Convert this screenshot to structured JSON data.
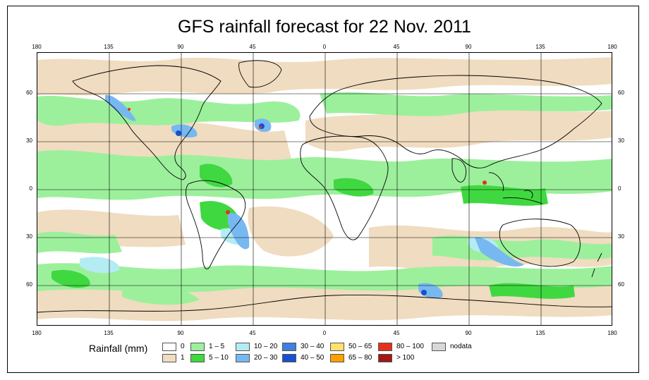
{
  "title": "GFS rainfall forecast for 22 Nov. 2011",
  "lon_labels": [
    "180",
    "135",
    "90",
    "45",
    "0",
    "45",
    "90",
    "135",
    "180"
  ],
  "lat_labels": [
    "60",
    "30",
    "0",
    "30",
    "60"
  ],
  "legend": {
    "title": "Rainfall (mm)",
    "items": [
      {
        "label": "0",
        "color": "#ffffff"
      },
      {
        "label": "1",
        "color": "#f0dcc0"
      },
      {
        "label": "1 – 5",
        "color": "#9cf09c"
      },
      {
        "label": "5 – 10",
        "color": "#40d840"
      },
      {
        "label": "10 – 20",
        "color": "#b4ecf4"
      },
      {
        "label": "20 – 30",
        "color": "#78b8f0"
      },
      {
        "label": "30 – 40",
        "color": "#4080e0"
      },
      {
        "label": "40 – 50",
        "color": "#1850d0"
      },
      {
        "label": "50 – 65",
        "color": "#ffe070"
      },
      {
        "label": "65 – 80",
        "color": "#ffa000"
      },
      {
        "label": "80 – 100",
        "color": "#e83018"
      },
      {
        "label": "> 100",
        "color": "#a01818"
      },
      {
        "label": "nodata",
        "color": "#d8d8d8"
      }
    ]
  },
  "colors": {
    "beige": "#f0dcc0",
    "light_green": "#9cf09c",
    "green": "#40d840",
    "light_blue": "#b4ecf4",
    "blue": "#78b8f0",
    "dark_blue": "#1850d0",
    "red": "#e83018",
    "grid": "#000000"
  }
}
